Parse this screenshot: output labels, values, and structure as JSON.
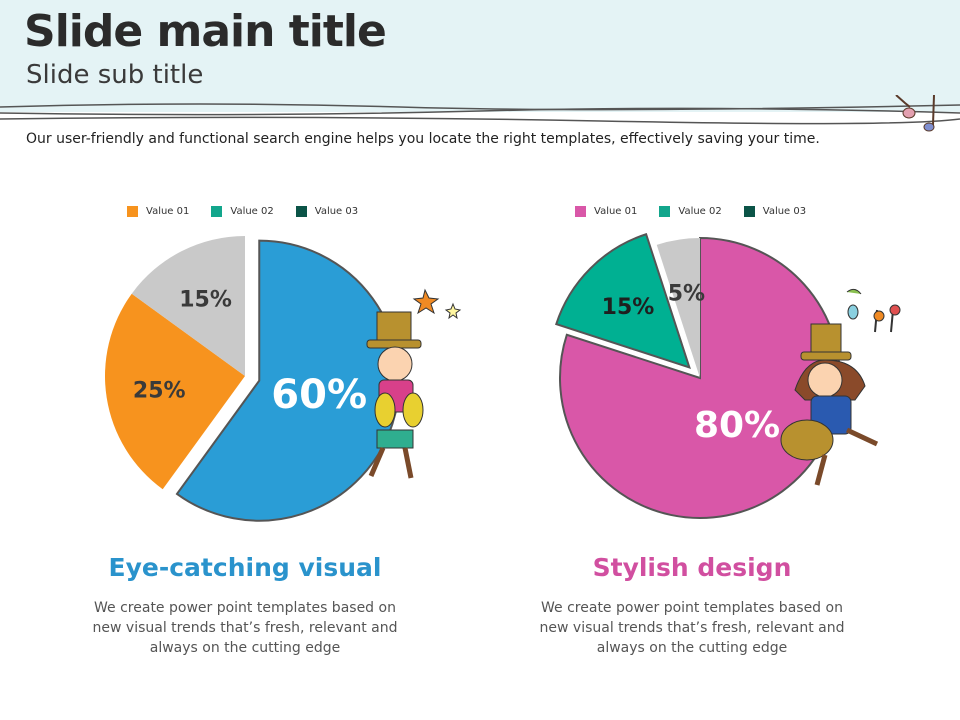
{
  "header": {
    "title": "Slide main title",
    "subtitle": "Slide sub title"
  },
  "description": "Our user-friendly and functional  search engine helps you locate the right templates, effectively saving your time.",
  "chart_data": [
    {
      "type": "pie",
      "legend": [
        {
          "label": "Value 01",
          "color": "#f7931e"
        },
        {
          "label": "Value 02",
          "color": "#12a68c"
        },
        {
          "label": "Value 03",
          "color": "#0b5447"
        }
      ],
      "slices": [
        {
          "value": 60,
          "label": "60%",
          "color": "#2a9dd6",
          "exploded": true,
          "text_color": "#ffffff"
        },
        {
          "value": 25,
          "label": "25%",
          "color": "#f7931e",
          "exploded": false,
          "text_color": "#3a3a3a"
        },
        {
          "value": 15,
          "label": "15%",
          "color": "#c9c9c9",
          "exploded": false,
          "text_color": "#3a3a3a"
        }
      ],
      "legend_placement": "top"
    },
    {
      "type": "pie",
      "legend": [
        {
          "label": "Value 01",
          "color": "#d957a8"
        },
        {
          "label": "Value 02",
          "color": "#12a68c"
        },
        {
          "label": "Value 03",
          "color": "#0b5447"
        }
      ],
      "slices": [
        {
          "value": 80,
          "label": "80%",
          "color": "#d957a8",
          "exploded": false,
          "text_color": "#ffffff"
        },
        {
          "value": 15,
          "label": "15%",
          "color": "#00b092",
          "exploded": true,
          "text_color": "#1f1f1f"
        },
        {
          "value": 5,
          "label": "5%",
          "color": "#c9c9c9",
          "exploded": false,
          "text_color": "#3a3a3a"
        }
      ],
      "legend_placement": "top"
    }
  ],
  "sections": [
    {
      "heading": "Eye-catching visual",
      "color": "#2a93cc",
      "lines": [
        "We create power point templates based on",
        "new visual trends that’s fresh, relevant and",
        "always on the cutting edge"
      ]
    },
    {
      "heading": "Stylish design",
      "color": "#d14fa0",
      "lines": [
        "We create power point templates based on",
        "new visual trends that’s fresh, relevant and",
        "always on the cutting edge"
      ]
    }
  ]
}
